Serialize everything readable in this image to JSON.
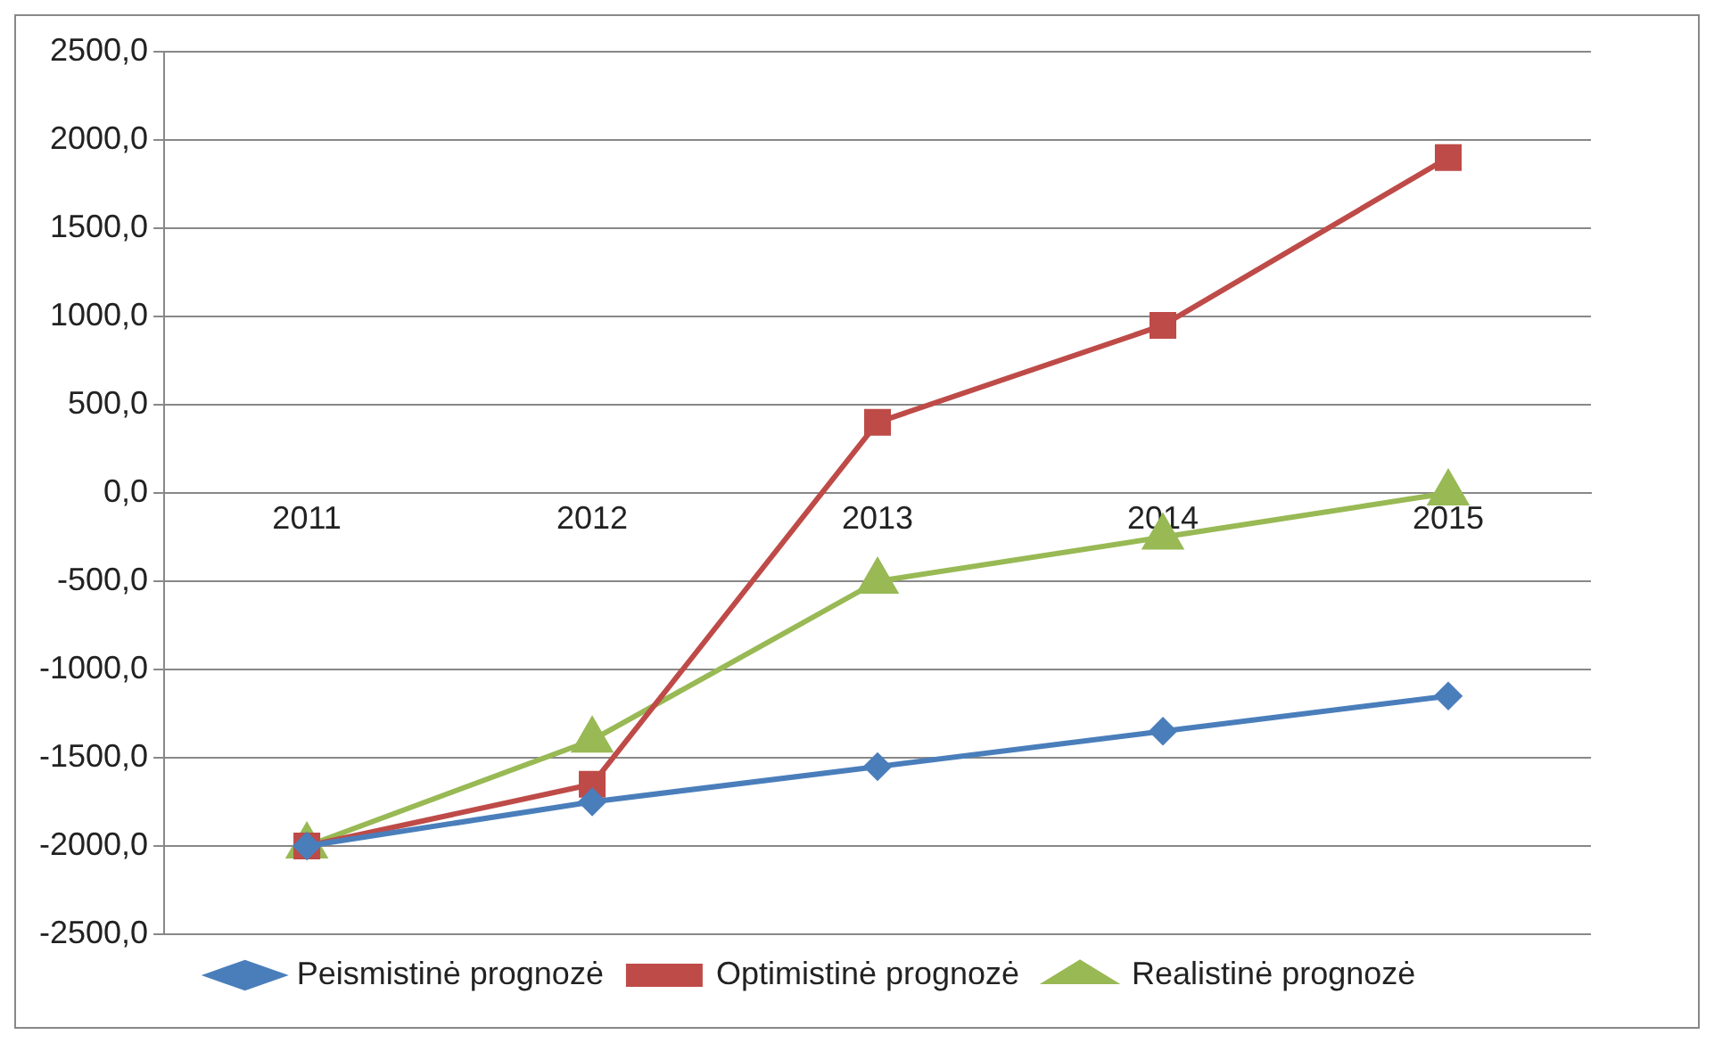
{
  "chart_data": {
    "type": "line",
    "categories": [
      "2011",
      "2012",
      "2013",
      "2014",
      "2015"
    ],
    "series": [
      {
        "name": "Peismistinė prognozė",
        "color": "#4a7ebb",
        "marker": "diamond",
        "values": [
          -2000,
          -1750,
          -1550,
          -1350,
          -1150
        ]
      },
      {
        "name": "Optimistinė prognozė",
        "color": "#be4b48",
        "marker": "square",
        "values": [
          -2000,
          -1650,
          400,
          950,
          1900
        ]
      },
      {
        "name": "Realistinė prognozė",
        "color": "#98b954",
        "marker": "triangle",
        "values": [
          -2000,
          -1400,
          -500,
          -250,
          0
        ]
      }
    ],
    "ylim": [
      -2500,
      2500
    ],
    "yticks": [
      {
        "value": -2500,
        "label": "-2500,0"
      },
      {
        "value": -2000,
        "label": "-2000,0"
      },
      {
        "value": -1500,
        "label": "-1500,0"
      },
      {
        "value": -1000,
        "label": "-1000,0"
      },
      {
        "value": -500,
        "label": "-500,0"
      },
      {
        "value": 0,
        "label": "0,0"
      },
      {
        "value": 500,
        "label": "500,0"
      },
      {
        "value": 1000,
        "label": "1000,0"
      },
      {
        "value": 1500,
        "label": "1500,0"
      },
      {
        "value": 2000,
        "label": "2000,0"
      },
      {
        "value": 2500,
        "label": "2500,0"
      }
    ],
    "grid": "y",
    "legend": "bottom",
    "line_style": "solid"
  }
}
